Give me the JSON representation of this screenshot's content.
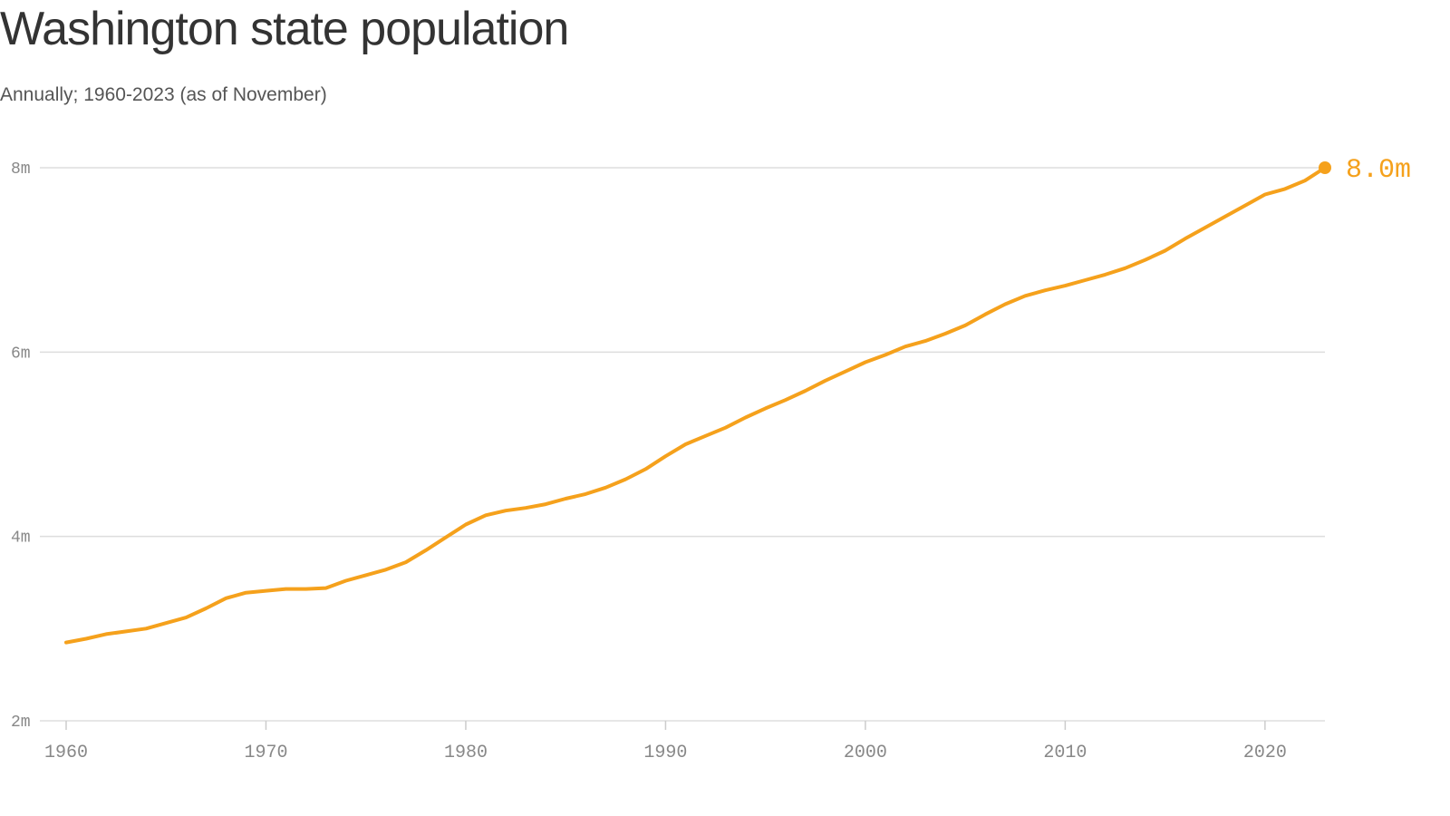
{
  "title": "Washington state population",
  "subtitle": "Annually; 1960-2023 (as of November)",
  "colors": {
    "line": "#f5a11c",
    "grid": "#dddddd",
    "axis_text": "#888888"
  },
  "chart_data": {
    "type": "line",
    "title": "Washington state population",
    "subtitle": "Annually; 1960-2023 (as of November)",
    "xlabel": "",
    "ylabel": "",
    "x_unit": "year",
    "y_unit": "millions",
    "xlim": [
      1960,
      2023
    ],
    "ylim": [
      2,
      8
    ],
    "x_ticks": [
      1960,
      1970,
      1980,
      1990,
      2000,
      2010,
      2020
    ],
    "x_tick_labels": [
      "1960",
      "1970",
      "1980",
      "1990",
      "2000",
      "2010",
      "2020"
    ],
    "y_ticks": [
      2,
      4,
      6,
      8
    ],
    "y_tick_labels": [
      "2m",
      "4m",
      "6m",
      "8m"
    ],
    "grid": true,
    "series": [
      {
        "color": "#f5a11c",
        "x": [
          1960,
          1961,
          1962,
          1963,
          1964,
          1965,
          1966,
          1967,
          1968,
          1969,
          1970,
          1971,
          1972,
          1973,
          1974,
          1975,
          1976,
          1977,
          1978,
          1979,
          1980,
          1981,
          1982,
          1983,
          1984,
          1985,
          1986,
          1987,
          1988,
          1989,
          1990,
          1991,
          1992,
          1993,
          1994,
          1995,
          1996,
          1997,
          1998,
          1999,
          2000,
          2001,
          2002,
          2003,
          2004,
          2005,
          2006,
          2007,
          2008,
          2009,
          2010,
          2011,
          2012,
          2013,
          2014,
          2015,
          2016,
          2017,
          2018,
          2019,
          2020,
          2021,
          2022,
          2023
        ],
        "y": [
          2.85,
          2.89,
          2.94,
          2.97,
          3.0,
          3.06,
          3.12,
          3.22,
          3.33,
          3.39,
          3.41,
          3.43,
          3.43,
          3.44,
          3.52,
          3.58,
          3.64,
          3.72,
          3.85,
          3.99,
          4.13,
          4.23,
          4.28,
          4.31,
          4.35,
          4.41,
          4.46,
          4.53,
          4.62,
          4.73,
          4.87,
          5.0,
          5.09,
          5.18,
          5.29,
          5.39,
          5.48,
          5.58,
          5.69,
          5.79,
          5.89,
          5.97,
          6.06,
          6.12,
          6.2,
          6.29,
          6.41,
          6.52,
          6.61,
          6.67,
          6.72,
          6.78,
          6.84,
          6.91,
          7.0,
          7.1,
          7.23,
          7.35,
          7.47,
          7.59,
          7.71,
          7.77,
          7.86,
          8.0
        ]
      }
    ],
    "annotations": [
      {
        "x": 2023,
        "y": 8.0,
        "text": "8.0m"
      }
    ]
  }
}
